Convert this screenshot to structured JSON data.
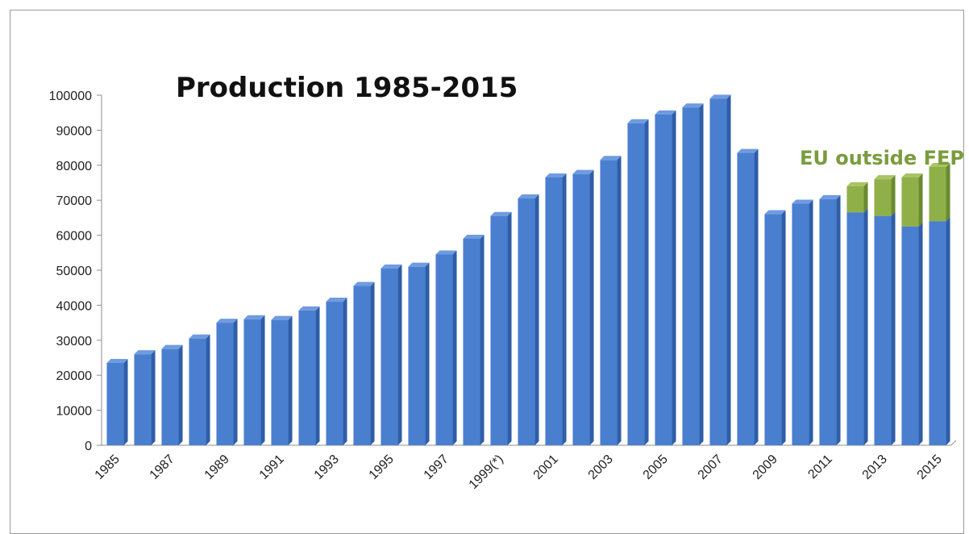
{
  "chart_data": {
    "type": "bar",
    "stacked": true,
    "title": "Production 1985-2015",
    "xlabel": "",
    "ylabel": "",
    "ylim": [
      0,
      100000
    ],
    "yticks": [
      0,
      10000,
      20000,
      30000,
      40000,
      50000,
      60000,
      70000,
      80000,
      90000,
      100000
    ],
    "grid": false,
    "legend_placement": "top-right",
    "categories": [
      "1985",
      "1986",
      "1987",
      "1988",
      "1989",
      "1990",
      "1991",
      "1992",
      "1993",
      "1994",
      "1995",
      "1996",
      "1997",
      "1998",
      "1999(*)",
      "2000",
      "2001",
      "2002",
      "2003",
      "2004",
      "2005",
      "2006",
      "2007",
      "2008",
      "2009",
      "2010",
      "2011",
      "2012",
      "2013",
      "2014",
      "2015"
    ],
    "tick_labels": [
      "1985",
      "1987",
      "1989",
      "1991",
      "1993",
      "1995",
      "1997",
      "1999(*)",
      "2001",
      "2003",
      "2005",
      "2007",
      "2009",
      "2011",
      "2013",
      "2015"
    ],
    "series": [
      {
        "values": [
          23500,
          26000,
          27500,
          30500,
          35000,
          36000,
          35800,
          38500,
          41000,
          45500,
          50500,
          51000,
          54500,
          59000,
          65500,
          70500,
          76500,
          77500,
          81500,
          92000,
          94500,
          96500,
          99000,
          83500,
          66000,
          69000,
          70300,
          66500,
          65500,
          62500,
          64000
        ],
        "color": "#4a7fd0"
      },
      {
        "name": "EU outside FEP",
        "values": [
          0,
          0,
          0,
          0,
          0,
          0,
          0,
          0,
          0,
          0,
          0,
          0,
          0,
          0,
          0,
          0,
          0,
          0,
          0,
          0,
          0,
          0,
          0,
          0,
          0,
          0,
          0,
          7500,
          10500,
          14000,
          15500
        ],
        "color": "#8fb048"
      }
    ]
  }
}
